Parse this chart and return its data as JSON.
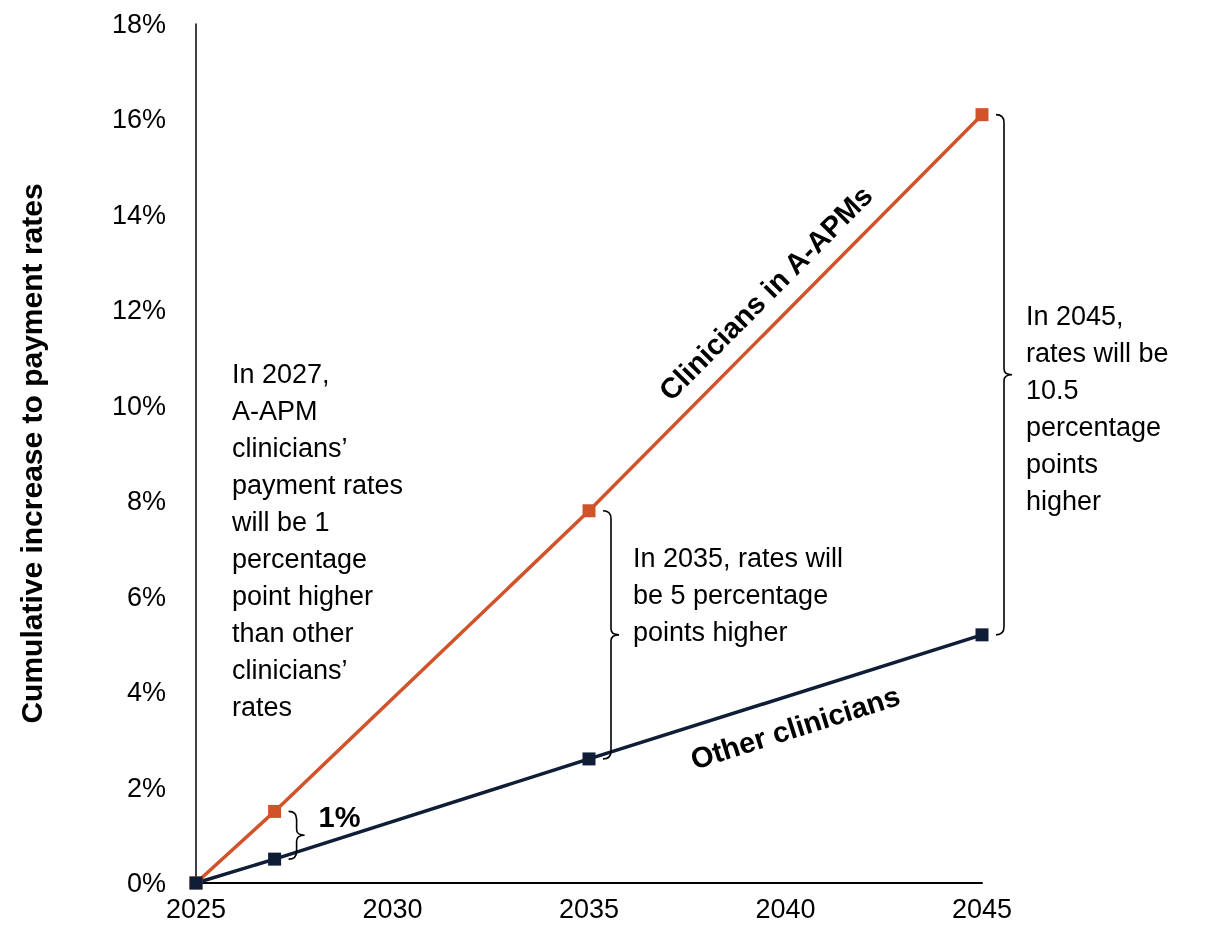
{
  "chart_data": {
    "type": "line",
    "ylabel": "Cumulative increase to payment rates",
    "x": [
      2025,
      2027,
      2035,
      2045
    ],
    "series": [
      {
        "name": "Clinicians in A-APMs",
        "color": "#d0532a",
        "values": [
          0,
          1.5,
          7.8,
          16.1
        ]
      },
      {
        "name": "Other clinicians",
        "color": "#0f1e36",
        "values": [
          0,
          0.5,
          2.6,
          5.2
        ]
      }
    ],
    "xlim": [
      2025,
      2045
    ],
    "xticks": [
      2025,
      2030,
      2035,
      2040,
      2045
    ],
    "ylim": [
      0,
      18
    ],
    "yticks": [
      {
        "value": 0,
        "label": "0%"
      },
      {
        "value": 2,
        "label": "2%"
      },
      {
        "value": 4,
        "label": "4%"
      },
      {
        "value": 6,
        "label": "6%"
      },
      {
        "value": 8,
        "label": "8%"
      },
      {
        "value": 10,
        "label": "10%"
      },
      {
        "value": 12,
        "label": "12%"
      },
      {
        "value": 14,
        "label": "14%"
      },
      {
        "value": 16,
        "label": "16%"
      },
      {
        "value": 18,
        "label": "18%"
      }
    ],
    "marker": "square",
    "line_style": "solid",
    "annotations": [
      "In 2027,\nA-APM\nclinicians’\npayment rates\nwill be 1\npercentage\npoint higher\nthan other\nclinicians’\nrates",
      "1%",
      "In 2035, rates will\nbe 5 percentage\npoints higher",
      "In 2045,\nrates will be\n10.5\npercentage\npoints\nhigher"
    ]
  }
}
